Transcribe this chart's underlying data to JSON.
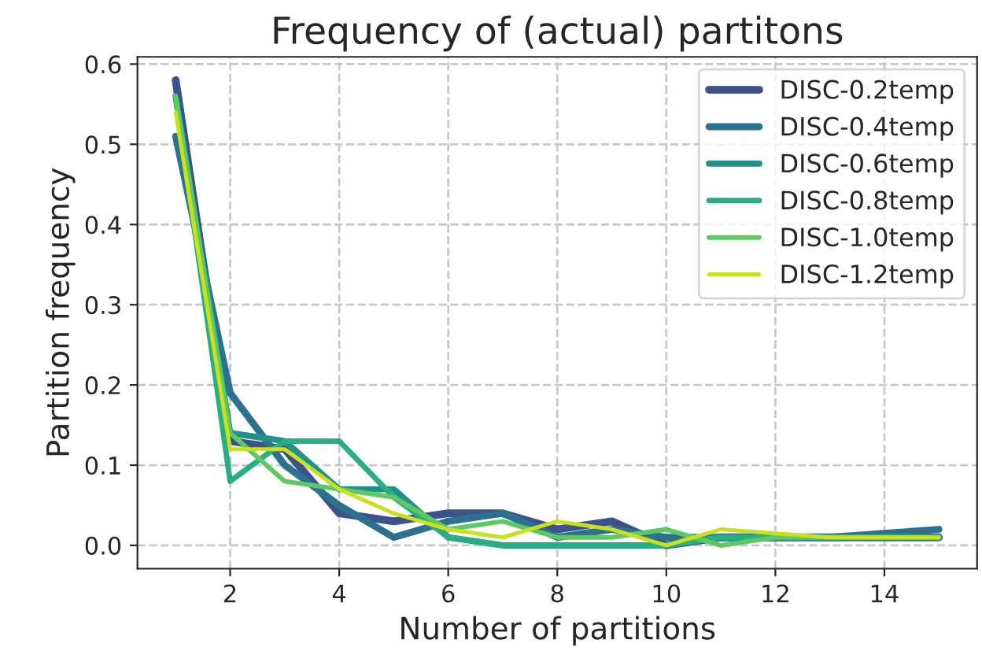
{
  "chart_data": {
    "type": "line",
    "title": "Frequency of (actual) partitons",
    "xlabel": "Number of partitions",
    "ylabel": "Partition frequency",
    "x": [
      1,
      2,
      3,
      4,
      5,
      6,
      7,
      8,
      9,
      10,
      11,
      12,
      13,
      14,
      15
    ],
    "series": [
      {
        "name": "DISC-0.2temp",
        "color": "#3b528b",
        "values": [
          0.58,
          0.13,
          0.12,
          0.04,
          0.03,
          0.04,
          0.04,
          0.02,
          0.03,
          0.0,
          0.01,
          0.01,
          0.01,
          0.01,
          0.01
        ]
      },
      {
        "name": "DISC-0.4temp",
        "color": "#2c728e",
        "values": [
          0.51,
          0.19,
          0.1,
          0.05,
          0.01,
          0.03,
          0.04,
          0.01,
          0.02,
          0.01,
          0.01,
          0.01,
          0.01,
          0.015,
          0.02
        ]
      },
      {
        "name": "DISC-0.6temp",
        "color": "#21918c",
        "values": [
          0.56,
          0.14,
          0.13,
          0.07,
          0.07,
          0.01,
          0.0,
          0.0,
          0.0,
          0.0,
          0.01,
          0.01,
          0.01,
          0.01,
          0.01
        ]
      },
      {
        "name": "DISC-0.8temp",
        "color": "#28ae80",
        "values": [
          0.56,
          0.08,
          0.13,
          0.13,
          0.06,
          0.01,
          0.0,
          0.0,
          0.0,
          0.0,
          0.01,
          0.01,
          0.01,
          0.01,
          0.01
        ]
      },
      {
        "name": "DISC-1.0temp",
        "color": "#5ec962",
        "values": [
          0.56,
          0.14,
          0.08,
          0.07,
          0.06,
          0.02,
          0.03,
          0.01,
          0.01,
          0.02,
          0.0,
          0.01,
          0.01,
          0.01,
          0.01
        ]
      },
      {
        "name": "DISC-1.2temp",
        "color": "#c8e020",
        "values": [
          0.54,
          0.12,
          0.12,
          0.07,
          0.04,
          0.02,
          0.01,
          0.03,
          0.02,
          0.0,
          0.02,
          0.015,
          0.01,
          0.01,
          0.01
        ]
      }
    ],
    "xlim": [
      0.3,
      15.7
    ],
    "ylim": [
      -0.029,
      0.609
    ],
    "xticks": [
      2,
      4,
      6,
      8,
      10,
      12,
      14
    ],
    "yticks": [
      {
        "value": 0,
        "label": "0.0"
      },
      {
        "value": 0.1,
        "label": "0.1"
      },
      {
        "value": 0.2,
        "label": "0.2"
      },
      {
        "value": 0.3,
        "label": "0.3"
      },
      {
        "value": 0.4,
        "label": "0.4"
      },
      {
        "value": 0.5,
        "label": "0.5"
      },
      {
        "value": 0.6,
        "label": "0.6"
      }
    ],
    "grid": true,
    "legend": "top right",
    "marker": "none",
    "line_style": "solid"
  }
}
